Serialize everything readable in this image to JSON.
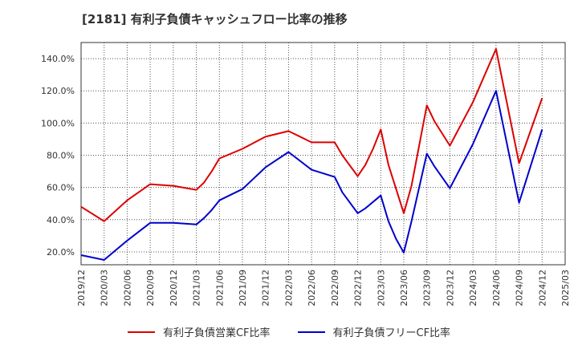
{
  "chart_data": {
    "type": "line",
    "title": "[2181]  有利子負債キャッシュフロー比率の推移",
    "xlabel": "",
    "ylabel": "",
    "x_ticks": [
      "2019/12",
      "2020/03",
      "2020/06",
      "2020/09",
      "2020/12",
      "2021/03",
      "2021/06",
      "2021/09",
      "2021/12",
      "2022/03",
      "2022/06",
      "2022/09",
      "2022/12",
      "2023/03",
      "2023/06",
      "2023/09",
      "2023/12",
      "2024/03",
      "2024/06",
      "2024/09",
      "2024/12",
      "2025/03"
    ],
    "y_ticks": [
      "20.0%",
      "40.0%",
      "60.0%",
      "80.0%",
      "100.0%",
      "120.0%",
      "140.0%"
    ],
    "y_tick_values": [
      20,
      40,
      60,
      80,
      100,
      120,
      140
    ],
    "ylim": [
      12,
      150
    ],
    "grid": true,
    "legend_position": "bottom",
    "series": [
      {
        "name": "有利子負債営業CF比率",
        "color": "#dd0000",
        "points": [
          [
            "2019/12",
            48
          ],
          [
            "2020/03",
            39
          ],
          [
            "2020/06",
            52
          ],
          [
            "2020/09",
            62
          ],
          [
            "2020/12",
            61
          ],
          [
            "2021/03",
            58.5
          ],
          [
            "2021/04",
            63
          ],
          [
            "2021/05",
            70
          ],
          [
            "2021/06",
            78
          ],
          [
            "2021/09",
            84
          ],
          [
            "2021/12",
            91.5
          ],
          [
            "2022/03",
            95
          ],
          [
            "2022/06",
            88
          ],
          [
            "2022/09",
            88
          ],
          [
            "2022/10",
            80
          ],
          [
            "2022/12",
            67
          ],
          [
            "2023/01",
            74
          ],
          [
            "2023/02",
            84
          ],
          [
            "2023/03",
            96
          ],
          [
            "2023/04",
            74
          ],
          [
            "2023/06",
            44
          ],
          [
            "2023/07",
            61
          ],
          [
            "2023/09",
            111
          ],
          [
            "2023/10",
            101
          ],
          [
            "2023/12",
            86
          ],
          [
            "2024/03",
            113
          ],
          [
            "2024/06",
            146
          ],
          [
            "2024/09",
            75
          ],
          [
            "2024/12",
            115.5
          ]
        ]
      },
      {
        "name": "有利子負債フリーCF比率",
        "color": "#0000cc",
        "points": [
          [
            "2019/12",
            18
          ],
          [
            "2020/03",
            15
          ],
          [
            "2020/06",
            27
          ],
          [
            "2020/09",
            38
          ],
          [
            "2020/12",
            38
          ],
          [
            "2021/03",
            37
          ],
          [
            "2021/04",
            41
          ],
          [
            "2021/05",
            46
          ],
          [
            "2021/06",
            52
          ],
          [
            "2021/09",
            59
          ],
          [
            "2021/12",
            72.5
          ],
          [
            "2022/03",
            82
          ],
          [
            "2022/06",
            71
          ],
          [
            "2022/09",
            66.5
          ],
          [
            "2022/10",
            57
          ],
          [
            "2022/12",
            44
          ],
          [
            "2023/01",
            47
          ],
          [
            "2023/02",
            51
          ],
          [
            "2023/03",
            55
          ],
          [
            "2023/04",
            39
          ],
          [
            "2023/05",
            28
          ],
          [
            "2023/06",
            19.5
          ],
          [
            "2023/07",
            39
          ],
          [
            "2023/09",
            81
          ],
          [
            "2023/10",
            73
          ],
          [
            "2023/12",
            59.5
          ],
          [
            "2024/03",
            87
          ],
          [
            "2024/06",
            120
          ],
          [
            "2024/09",
            50.5
          ],
          [
            "2024/12",
            96
          ]
        ]
      }
    ]
  }
}
